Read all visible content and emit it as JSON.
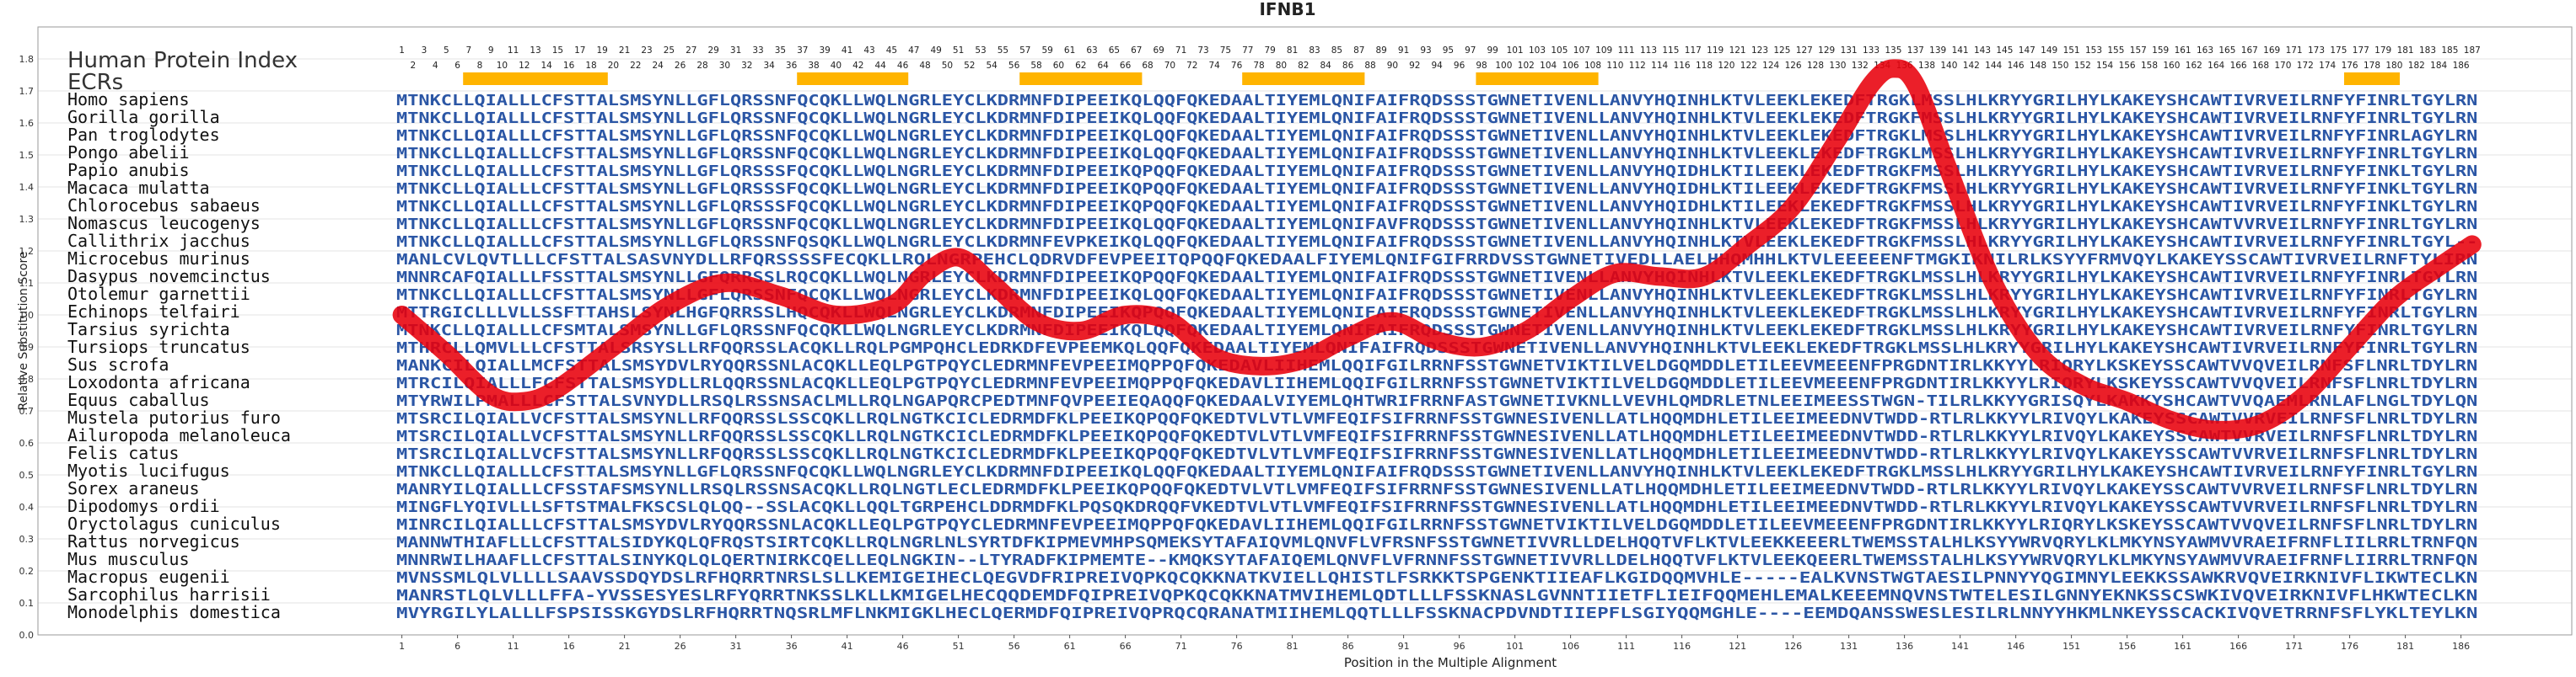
{
  "chart_data": {
    "type": "line",
    "title": "IFNB1",
    "xlabel": "Position in the Multiple Alignment",
    "ylabel": "Relative Substitution Score",
    "ylim": [
      0.0,
      1.9
    ],
    "yticks": [
      "0.0",
      "0.1",
      "0.2",
      "0.3",
      "0.4",
      "0.5",
      "0.6",
      "0.7",
      "0.8",
      "0.9",
      "1.0",
      "1.1",
      "1.2",
      "1.3",
      "1.4",
      "1.5",
      "1.6",
      "1.7",
      "1.8"
    ],
    "xticks": [
      "1",
      "6",
      "11",
      "16",
      "21",
      "26",
      "31",
      "36",
      "41",
      "46",
      "51",
      "56",
      "61",
      "66",
      "71",
      "76",
      "81",
      "86",
      "91",
      "96",
      "101",
      "106",
      "111",
      "116",
      "121",
      "126",
      "131",
      "136",
      "141",
      "146",
      "151",
      "156",
      "161",
      "166",
      "171",
      "176",
      "181",
      "186"
    ],
    "xlim": [
      1,
      187
    ],
    "grid": true,
    "panel_title": "Human Protein Index",
    "ecr_label": "ECRs",
    "ecr_regions": [
      [
        7,
        19
      ],
      [
        37,
        46
      ],
      [
        57,
        67
      ],
      [
        77,
        87
      ],
      [
        98,
        108
      ],
      [
        176,
        180
      ]
    ],
    "index_odd": [
      "1",
      "3",
      "5",
      "7",
      "9",
      "11",
      "13",
      "15",
      "17",
      "19",
      "21",
      "23",
      "25",
      "27",
      "29",
      "31",
      "33",
      "35",
      "37",
      "39",
      "41",
      "43",
      "45",
      "47",
      "49",
      "51",
      "53",
      "55",
      "57",
      "59",
      "61",
      "63",
      "65",
      "67",
      "69",
      "71",
      "73",
      "75",
      "77",
      "79",
      "81",
      "83",
      "85",
      "87",
      "89",
      "91",
      "93",
      "95",
      "97",
      "99",
      "101",
      "103",
      "105",
      "107",
      "109",
      "111",
      "113",
      "115",
      "117",
      "119",
      "121",
      "123",
      "125",
      "127",
      "129",
      "131",
      "133",
      "135",
      "137",
      "139",
      "141",
      "143",
      "145",
      "147",
      "149",
      "151",
      "153",
      "155",
      "157",
      "159",
      "161",
      "163",
      "165",
      "167",
      "169",
      "171",
      "173",
      "175",
      "177",
      "179",
      "181",
      "183",
      "185",
      "187"
    ],
    "index_even": [
      "2",
      "4",
      "6",
      "8",
      "10",
      "12",
      "14",
      "16",
      "18",
      "20",
      "22",
      "24",
      "26",
      "28",
      "30",
      "32",
      "34",
      "36",
      "38",
      "40",
      "42",
      "44",
      "46",
      "48",
      "50",
      "52",
      "54",
      "56",
      "58",
      "60",
      "62",
      "64",
      "66",
      "68",
      "70",
      "72",
      "74",
      "76",
      "78",
      "80",
      "82",
      "84",
      "86",
      "88",
      "90",
      "92",
      "94",
      "96",
      "98",
      "100",
      "102",
      "104",
      "106",
      "108",
      "110",
      "112",
      "114",
      "116",
      "118",
      "120",
      "122",
      "124",
      "126",
      "128",
      "130",
      "132",
      "134",
      "136",
      "138",
      "140",
      "142",
      "144",
      "146",
      "148",
      "150",
      "152",
      "154",
      "156",
      "158",
      "160",
      "162",
      "164",
      "166",
      "168",
      "170",
      "172",
      "174",
      "176",
      "178",
      "180",
      "182",
      "184",
      "186"
    ],
    "series": [
      {
        "color": "#e8000b",
        "x": [
          1,
          5,
          9,
          12,
          15,
          20,
          25,
          30,
          35,
          40,
          45,
          48,
          51,
          54,
          58,
          62,
          66,
          70,
          74,
          78,
          82,
          86,
          90,
          94,
          98,
          102,
          106,
          110,
          114,
          118,
          122,
          126,
          130,
          133,
          135,
          137,
          140,
          144,
          148,
          152,
          156,
          160,
          164,
          168,
          172,
          176,
          180,
          184,
          187
        ],
        "values": [
          1.0,
          0.88,
          0.75,
          0.73,
          0.77,
          0.9,
          1.03,
          1.1,
          1.06,
          1.0,
          1.03,
          1.13,
          1.18,
          1.1,
          0.98,
          0.95,
          1.0,
          0.98,
          0.87,
          0.84,
          0.86,
          0.93,
          0.98,
          0.92,
          0.9,
          0.95,
          1.05,
          1.13,
          1.12,
          1.12,
          1.22,
          1.34,
          1.55,
          1.72,
          1.77,
          1.72,
          1.45,
          1.1,
          0.88,
          0.78,
          0.73,
          0.67,
          0.64,
          0.66,
          0.75,
          0.9,
          1.05,
          1.15,
          1.22
        ]
      }
    ]
  },
  "alignment": [
    {
      "species": "Homo sapiens",
      "seq": "MTNKCLLQIALLLCFSTTALSMSYNLLGFLQRSSNFQCQKLLWQLNGRLEYCLKDRMNFDIPEEIKQLQQFQKEDAALTIYEMLQNIFAIFRQDSSSTGWNETIVENLLANVYHQINHLKTVLEEKLEKEDFTRGKLMSSLHLKRYYGRILHYLKAKEYSHCAWTIVRVEILRNFYFINRLTGYLRN"
    },
    {
      "species": "Gorilla gorilla",
      "seq": "MTNKCLLQIALLLCFSTTALSMSYNLLGFLQRSSNFQCQKLLWQLNGRLEYCLKDRMNFDIPEEIKQLQQFQKEDAALTIYEMLQNIFAIFRQDSSSTGWNETIVENLLANVYHQINHLKTVLEEKLEKEDFTRGKFMSSLHLKRYYGRILHYLKAKEYSHCAWTIVRVEILRNFYFINRLTGYLRN"
    },
    {
      "species": "Pan troglodytes",
      "seq": "MTNKCLLQIALLLCFSTTALSMSYNLLGFLQRSSNFQCQKLLWQLNGRLEYCLKDRMNFDIPEEIKQLQQFQKEDAALTIYEMLQNIFAIFRQDSSSTGWNETIVENLLANVYHQINHLKTVLEEKLEKEDFTRGKLMSSLHLKRYYGRILHYLKAKEYSHCAWTIVRVEILRNFYFINRLAGYLRN"
    },
    {
      "species": "Pongo abelii",
      "seq": "MTNKCLLQIALLLCFSTTALSMSYNLLGFLQRSSNFQCQKLLWQLNGRLEYCLKDRMNFDIPEEIKQLQQFQKEDAALTIYEMLQNIFAIFRQDSSSTGWNETIVENLLANVYHQINHLKTVLEEKLEKEDFTRGKLMSSLHLKRYYGRILHYLKAKEYSHCAWTIVRVEILRNFYFINRLTGYLRN"
    },
    {
      "species": "Papio anubis",
      "seq": "MTNKCLLQIALLLCFSTTALSMSYNLLGFLQRSSSFQCQKLLWQLNGRLEYCLKDRMNFDIPEEIKQPQQFQKEDAALTIYEMLQNIFAIFRQDSSSTGWNETIVENLLANVYHQIDHLKTILEEKLEKEDFTRGKFMSSLHLKRYYGRILHYLKAKEYSHCAWTIVRVEILRNFYFINKLTGYLRN"
    },
    {
      "species": "Macaca mulatta",
      "seq": "MTNKCLLQIALLLCFSTTALSMSYNLLGFLQRSSSFQCQKLLWQLNGRLEYCLKDRMNFDIPEEIKQPQQFQKEDAALTIYEMLQNIFAIFRQDSSSTGWNETIVENLLANVYHQIDHLKTILEEKLEKEDFTRGKFMSSLHLKRYYGRILHYLKAKEYSHCAWTIVRVEILRNFYFINKLTGYLRN"
    },
    {
      "species": "Chlorocebus sabaeus",
      "seq": "MTNKCLLQIALLLCFSTTALSMSYNLLGFLQRSSSFQCQKLLWQLNGRLEYCLKDRMNFDIPEEIKQPQQFQKEDAALTIYEMLQNIFAIFRQDSSSTGWNETIVENLLANVYHQIDHLKTILEEKLEKEDFTRGKFMSSLHLKRYYGRILHYLKAKEYSHCAWTIVRVEILRNFYFINKLTGYLRN"
    },
    {
      "species": "Nomascus leucogenys",
      "seq": "MTNKCLLQIALLLCFSTTALSMSYNLLGFLQRSSNFQCQKLLWQLNGRLEYCLKDRMNFDIPEEIKQLQQFQKEDAALTIYEMLQNIFAVFRQDSSSTGWNETIVENLLANVYHQINHLKTVLEEKLEKEDFTRGKFMSSLHLKRYYGRILHYLKAKEYSHCAWTVVRVEILRNFYFINRLTGYLRN"
    },
    {
      "species": "Callithrix jacchus",
      "seq": "MTNKCLLQIALLLCFSTTALSMSYNLLGFLQRSSNFQSQKLLWQLNGRLEYCLKDRMNFEVPKEIKQLQQFQKEDAALTIYEMLQNIFAIFRQDSSSTGWNETIVENLLANVYHQINHLKTVLEEKLEKEDFTRGKFMSSLHLKRYYGRILHYLKAKEYSHCAWTIVRVEILRNFYFINRLTGYL--"
    },
    {
      "species": "Microcebus murinus",
      "seq": "MANLCVLQVTLLLCFSTTALSASVNYDLLRFQRSSSSFECQKLLRQLNGRPEHCLQDRVDFEVPEEITQPQQFQKEDAALFIYEMLQNIFGIFRRDVSSTGWNETIVEDLLAELHHQMHHLKTVLEEEEENFTMGKIKNILRLKSYYFRMVQYLKAKEYSSCAWTIVRVEILRNFTYLIRN"
    },
    {
      "species": "Dasypus novemcinctus",
      "seq": "MNNRCAFQIALLLFSSTTALSMSYNLLGFQRRSSLRQCQKLLWQLNGRLEYCLKDRMNFDIPEEIKQPQQFQKEDAALTIYEMLQNIFAIFRQDSSSTGWNETIVENLLANVYHQINHLKTVLEEKLEKEDFTRGKLMSSLHLKRYYGRILHYLKAKEYSHCAWTIVRVEILRNFYFINRLTGYLRN"
    },
    {
      "species": "Otolemur garnettii",
      "seq": "MTNKCLLQIALLLCFSTTALSMSYNLLGFLQRSSNFQCQKLLWQLNGRLEYCLKDRMNFDIPEEIKQLQQFQKEDAALTIYEMLQNIFAIFRQDSSSTGWNETIVENLLANVYHQINHLKTVLEEKLEKEDFTRGKLMSSLHLKRYYGRILHYLKAKEYSHCAWTIVRVEILRNFYFINRLTGYLRN"
    },
    {
      "species": "Echinops telfairi",
      "seq": "MTTRGICLLLVLLSSFTTAHSLSYNLHGFQRRSSLHQCQKLLWQLNGRLEYCLKDRMNFDIPEEIKQPQQFQKEDAALTIYEMLQNIFAIFRQDSSSTGWNETIVENLLANVYHQINHLKTVLEEKLEKEDFTRGKLMSSLHLKRYYGRILHYLKAKEYSHCAWTIVRVEILRNFYFINRLTGYLRN"
    },
    {
      "species": "Tarsius syrichta",
      "seq": "MTNKCLLQIALLLCFSMTALSMSYNLLGFLQRSSNFQCQKLLWQLNGRLEYCLKDRMNFDIPEEIKQLQQFQKEDAALTIYEMLQNIFAIFRQDSSSTGWNETIVENLLANVYHQINHLKTVLEEKLEKEDFTRGKLMSSLHLKRYYGRILHYLKAKEYSHCAWTIVRVEILRNFYFINRLTGYLRN"
    },
    {
      "species": "Tursiops truncatus",
      "seq": "MTHRCLLQMVLLLCFSTTALSRSYSLLRFQQRSSLACQKLLRQLPGMPQHCLEDRKDFEVPEEMKQLQQFQKEDAALTIYEMLQNIFAIFRQDSSSTGWNETIVENLLANVYHQINHLKTVLEEKLEKEDFTRGKLMSSLHLKRYYGRILHYLKAKEYSHCAWTIVRVEILRNFYFINRLTGYLRN"
    },
    {
      "species": "Sus scrofa",
      "seq": "MANKCILQIALLMCFSTTALSMSYDVLRYQQRSSNLACQKLLEQLPGTPQYCLEDRMNFEVPEEIMQPPQFQKEDAVLIIHEMLQQIFGILRRNFSSTGWNETVIKTILVELDGQMDDLETILEEVMEEENFPRGDNTIRLKKYYLRIQRYLKSKEYSSCAWTVVQVEILRNFSFLNRLTDYLRN"
    },
    {
      "species": "Loxodonta africana",
      "seq": "MTRCILQIALLLFCFSTTALSMSYDLLRLQQRSSNLACQKLLEQLPGTPQYCLEDRMNFEVPEEIMQPPQFQKEDAVLIIHEMLQQIFGILRRNFSSTGWNETVIKTILVELDGQMDDLETILEEVMEEENFPRGDNTIRLKKYYLRIQRYLKSKEYSSCAWTVVQVEILRNFSFLNRLTDYLRN"
    },
    {
      "species": "Equus caballus",
      "seq": "MTYRWILPMALLLCFSTTALSVNYDLLRSQLRSSNSACLMLLRQLNGAPQRCPEDTMNFQVPEEIEQAQQFQKEDAALVIYEMLQHTWRIFRRNFASTGWNETIVKNLLVEVHLQMDRLETNLEEIMEESSTWGN-TILRLKKYYGRISQYLKAKKYSHCAWTVVQAEMLRNLAFLNGLTDYLQN"
    },
    {
      "species": "Mustela putorius furo",
      "seq": "MTSRCILQIALLVCFSTTALSMSYNLLRFQQRSSLSSCQKLLRQLNGTKCICLEDRMDFKLPEEIKQPQQFQKEDTVLVTLVMFEQIFSIFRRNFSSTGWNESIVENLLATLHQQMDHLETILEEIMEEDNVTWDD-RTLRLKKYYLRIVQYLKAKEYSSCAWTVVRVEILRNFSFLNRLTDYLRN"
    },
    {
      "species": "Ailuropoda melanoleuca",
      "seq": "MTSRCILQIALLVCFSTTALSMSYNLLRFQQRSSLSSCQKLLRQLNGTKCICLEDRMDFKLPEEIKQPQQFQKEDTVLVTLVMFEQIFSIFRRNFSSTGWNESIVENLLATLHQQMDHLETILEEIMEEDNVTWDD-RTLRLKKYYLRIVQYLKAKEYSSCAWTVVRVEILRNFSFLNRLTDYLRN"
    },
    {
      "species": "Felis catus",
      "seq": "MTSRCILQIALLVCFSTTALSMSYNLLRFQQRSSLSSCQKLLRQLNGTKCICLEDRMDFKLPEEIKQPQQFQKEDTVLVTLVMFEQIFSIFRRNFSSTGWNESIVENLLATLHQQMDHLETILEEIMEEDNVTWDD-RTLRLKKYYLRIVQYLKAKEYSSCAWTVVRVEILRNFSFLNRLTDYLRN"
    },
    {
      "species": "Myotis lucifugus",
      "seq": "MTNKCLLQIALLLCFSTTALSMSYNLLGFLQRSSNFQCQKLLWQLNGRLEYCLKDRMNFDIPEEIKQLQQFQKEDAALTIYEMLQNIFAIFRQDSSSTGWNETIVENLLANVYHQINHLKTVLEEKLEKEDFTRGKLMSSLHLKRYYGRILHYLKAKEYSHCAWTIVRVEILRNFYFINRLTGYLRN"
    },
    {
      "species": "Sorex araneus",
      "seq": "MANRYILQIALLLCFSSTAFSMSYNLLRSQLRSSNSACQKLLRQLNGTLECLEDRMDFKLPEEIKQPQQFQKEDTVLVTLVMFEQIFSIFRRNFSSTGWNESIVENLLATLHQQMDHLETILEEIMEEDNVTWDD-RTLRLKKYYLRIVQYLKAKEYSSCAWTVVRVEILRNFSFLNRLTDYLRN"
    },
    {
      "species": "Dipodomys ordii",
      "seq": "MINGFLYQIVLLLSFTSTMALFKSCSLQLQQ--SSLACQKLLQQLTGRPEHCLDDRMDFKLPQSQKDRQQFVKEDTVLVTLVMFEQIFSIFRRNFSSTGWNESIVENLLATLHQQMDHLETILEEIMEEDNVTWDD-RTLRLKKYYLRIVQYLKAKEYSSCAWTVVRVEILRNFSFLNRLTDYLRN"
    },
    {
      "species": "Oryctolagus cuniculus",
      "seq": "MINRCILQIALLLCFSTTALSMSYDVLRYQQRSSNLACQKLLEQLPGTPQYCLEDRMNFEVPEEIMQPPQFQKEDAVLIIHEMLQQIFGILRRNFSSTGWNETVIKTILVELDGQMDDLETILEEVMEEENFPRGDNTIRLKKYYLRIQRYLKSKEYSSCAWTVVQVEILRNFSFLNRLTDYLRN"
    },
    {
      "species": "Rattus norvegicus",
      "seq": "MANNWTHIAFLLLCFSTTALSIDYKQLQFRQSTSIRTCQKLLRQLNGRLNLSYRTDFKIPMEVMHPSQMEKSYTAFAIQVMLQNVFLVFRSNFSSTGWNETIVVRLLDELHQQTVFLKTVLEEKKEEERLTWEMSSTALHLKSYYWRVQRYLKLMKYNSYAWMVVRAEIFRNFLIILRRLTRNFQN"
    },
    {
      "species": "Mus musculus",
      "seq": "MNNRWILHAAFLLCFSTTALSINYKQLQLQERTNIRKCQELLEQLNGKIN--LTYRADFKIPMEMTE--KMQKSYTAFAIQEMLQNVFLVFRNNFSSTGWNETIVVRLLDELHQQTVFLKTVLEEKQEERLTWEMSSTALHLKSYYWRVQRYLKLMKYNSYAWMVVRAEIFRNFLIIRRLTRNFQN"
    },
    {
      "species": "Macropus eugenii",
      "seq": "MVNSSMLQLVLLLLSAAVSSDQYDSLRFHQRRTNRSLSLLKEMIGEIHECLQEGVDFRIPREIVQPKQCQKKNATKVIELLQHISTLFSRKKTSPGENKTIIEAFLKGIDQQMVHLE-----EALKVNSTWGTAESILPNNYYQGIMNYLEEKKSSAWKRVQVEIRKNIVFLIKWTECLKN"
    },
    {
      "species": "Sarcophilus harrisii",
      "seq": "MANRSTLQLVLLLFFA-YVSSESYESLRFYQRRTNKSSLKLLKMIGELHECQQDEMDFQIPREIVQPKQCQKKNATMVIHEMLQDTLLLFSSKNASLGVNNTIIETFLIEIFQQMEHLEMALKEEEMNQVNSTWTELESILGNNYEKNKSSCSWKIVQVEIRKNIVFLHKWTECLKN"
    },
    {
      "species": "Monodelphis domestica",
      "seq": "MVYRGILYLALLLFSPSISSKGYDSLRFHQRRTNQSRLMFLNKMIGKLHECLQERMDFQIPREIVQPRQCQRANATMIIHEMLQQTLLLFSSKNACPDVNDTIIEPFLSGIYQQMGHLE----EEMDQANSSWESLESILRLNNYYHKMLNKEYSSCACKIVQVETRRNFSFLYKLTEYLKN"
    }
  ]
}
